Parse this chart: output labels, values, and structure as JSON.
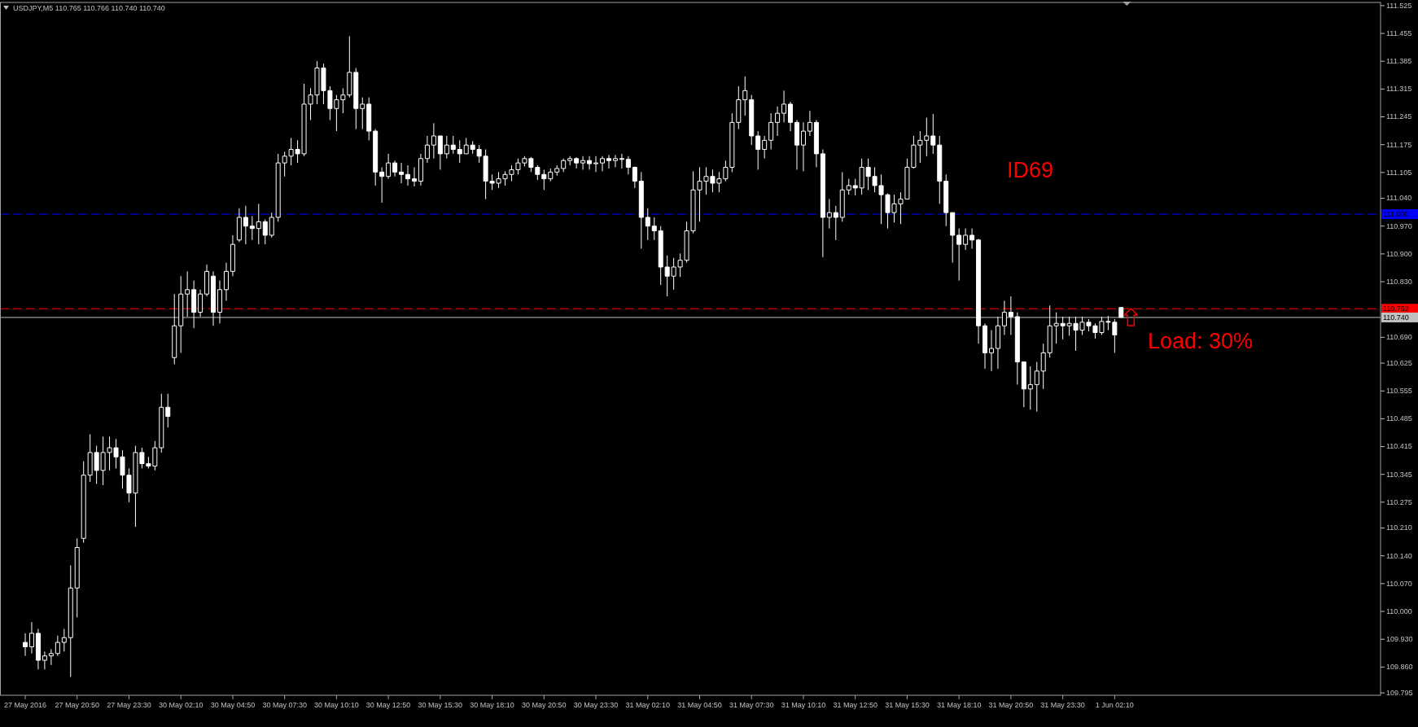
{
  "chart_data": {
    "type": "candlestick",
    "title": "USDJPY,M5 110.765 110.766 110.740 110.740",
    "categories": [
      "27 May 2016",
      null,
      null,
      null,
      null,
      null,
      null,
      null,
      "27 May 20:50",
      null,
      null,
      null,
      null,
      null,
      null,
      null,
      "27 May 23:30",
      null,
      null,
      null,
      null,
      null,
      null,
      null,
      "30 May 02:10",
      null,
      null,
      null,
      null,
      null,
      null,
      null,
      "30 May 04:50",
      null,
      null,
      null,
      null,
      null,
      null,
      null,
      "30 May 07:30",
      null,
      null,
      null,
      null,
      null,
      null,
      null,
      "30 May 10:10",
      null,
      null,
      null,
      null,
      null,
      null,
      null,
      "30 May 12:50",
      null,
      null,
      null,
      null,
      null,
      null,
      null,
      "30 May 15:30",
      null,
      null,
      null,
      null,
      null,
      null,
      null,
      "30 May 18:10",
      null,
      null,
      null,
      null,
      null,
      null,
      null,
      "30 May 20:50",
      null,
      null,
      null,
      null,
      null,
      null,
      null,
      "30 May 23:30",
      null,
      null,
      null,
      null,
      null,
      null,
      null,
      "31 May 02:10",
      null,
      null,
      null,
      null,
      null,
      null,
      null,
      "31 May 04:50",
      null,
      null,
      null,
      null,
      null,
      null,
      null,
      "31 May 07:30",
      null,
      null,
      null,
      null,
      null,
      null,
      null,
      "31 May 10:10",
      null,
      null,
      null,
      null,
      null,
      null,
      null,
      "31 May 12:50",
      null,
      null,
      null,
      null,
      null,
      null,
      null,
      "31 May 15:30",
      null,
      null,
      null,
      null,
      null,
      null,
      null,
      "31 May 18:10",
      null,
      null,
      null,
      null,
      null,
      null,
      null,
      "31 May 20:50",
      null,
      null,
      null,
      null,
      null,
      null,
      null,
      "31 May 23:30",
      null,
      null,
      null,
      null,
      null,
      null,
      null,
      "1 Jun 02:10",
      null,
      null,
      null,
      null,
      null,
      null,
      null,
      null,
      null,
      null,
      null,
      null,
      null,
      null,
      null,
      null,
      null,
      null,
      null,
      null,
      null,
      null,
      null,
      null,
      null,
      null,
      null,
      null,
      null,
      null,
      null,
      null,
      null,
      null,
      null,
      null,
      null,
      null,
      null,
      null
    ],
    "ohlc": [
      [
        109.922,
        109.945,
        109.888,
        109.911
      ],
      [
        109.911,
        109.973,
        109.894,
        109.945
      ],
      [
        109.945,
        109.956,
        109.854,
        109.877
      ],
      [
        109.877,
        109.899,
        109.854,
        109.888
      ],
      [
        109.888,
        109.905,
        109.865,
        109.894
      ],
      [
        109.894,
        109.939,
        109.888,
        109.922
      ],
      [
        109.922,
        109.956,
        109.899,
        109.934
      ],
      [
        109.934,
        110.116,
        109.835,
        110.059
      ],
      [
        110.059,
        110.184,
        109.985,
        110.161
      ],
      [
        110.184,
        110.378,
        110.173,
        110.343
      ],
      [
        110.343,
        110.446,
        110.326,
        110.4
      ],
      [
        110.4,
        110.417,
        110.321,
        110.355
      ],
      [
        110.355,
        110.44,
        110.318,
        110.4
      ],
      [
        110.4,
        110.44,
        110.355,
        110.412
      ],
      [
        110.412,
        110.434,
        110.36,
        110.389
      ],
      [
        110.389,
        110.406,
        110.309,
        110.343
      ],
      [
        110.343,
        110.36,
        110.275,
        110.298
      ],
      [
        110.298,
        110.417,
        110.213,
        110.4
      ],
      [
        110.4,
        110.412,
        110.36,
        110.372
      ],
      [
        110.372,
        110.389,
        110.36,
        110.366
      ],
      [
        110.366,
        110.429,
        110.355,
        110.412
      ],
      [
        110.412,
        110.548,
        110.4,
        110.514
      ],
      [
        110.514,
        110.548,
        110.463,
        110.491
      ],
      [
        110.639,
        110.799,
        110.622,
        110.719
      ],
      [
        110.719,
        110.844,
        110.651,
        110.799
      ],
      [
        110.799,
        110.856,
        110.742,
        110.81
      ],
      [
        110.81,
        110.833,
        110.713,
        110.753
      ],
      [
        110.753,
        110.81,
        110.742,
        110.799
      ],
      [
        110.799,
        110.873,
        110.793,
        110.856
      ],
      [
        110.844,
        110.856,
        110.719,
        110.753
      ],
      [
        110.753,
        110.833,
        110.725,
        110.81
      ],
      [
        110.81,
        110.878,
        110.782,
        110.856
      ],
      [
        110.856,
        110.947,
        110.844,
        110.924
      ],
      [
        110.935,
        111.015,
        110.93,
        110.992
      ],
      [
        110.992,
        111.021,
        110.924,
        110.97
      ],
      [
        110.97,
        110.995,
        110.935,
        110.964
      ],
      [
        110.964,
        111.026,
        110.924,
        110.981
      ],
      [
        110.981,
        110.987,
        110.924,
        110.947
      ],
      [
        110.947,
        111.004,
        110.941,
        110.992
      ],
      [
        110.992,
        111.152,
        110.981,
        111.129
      ],
      [
        111.129,
        111.157,
        111.095,
        111.146
      ],
      [
        111.146,
        111.192,
        111.123,
        111.163
      ],
      [
        111.163,
        111.186,
        111.129,
        111.152
      ],
      [
        111.152,
        111.328,
        111.146,
        111.277
      ],
      [
        111.277,
        111.317,
        111.237,
        111.3
      ],
      [
        111.3,
        111.385,
        111.277,
        111.368
      ],
      [
        111.368,
        111.379,
        111.277,
        111.311
      ],
      [
        111.311,
        111.322,
        111.237,
        111.266
      ],
      [
        111.266,
        111.3,
        111.209,
        111.288
      ],
      [
        111.288,
        111.317,
        111.254,
        111.3
      ],
      [
        111.3,
        111.448,
        111.294,
        111.357
      ],
      [
        111.357,
        111.368,
        111.214,
        111.266
      ],
      [
        111.266,
        111.294,
        111.214,
        111.277
      ],
      [
        111.277,
        111.294,
        111.186,
        111.209
      ],
      [
        111.209,
        111.214,
        111.072,
        111.106
      ],
      [
        111.106,
        111.118,
        111.029,
        111.095
      ],
      [
        111.095,
        111.152,
        111.089,
        111.129
      ],
      [
        111.129,
        111.135,
        111.095,
        111.106
      ],
      [
        111.106,
        111.129,
        111.078,
        111.1
      ],
      [
        111.1,
        111.123,
        111.072,
        111.089
      ],
      [
        111.089,
        111.118,
        111.07,
        111.083
      ],
      [
        111.083,
        111.152,
        111.072,
        111.14
      ],
      [
        111.14,
        111.197,
        111.129,
        111.174
      ],
      [
        111.174,
        111.229,
        111.14,
        111.197
      ],
      [
        111.197,
        111.197,
        111.112,
        111.152
      ],
      [
        111.152,
        111.197,
        111.14,
        111.174
      ],
      [
        111.174,
        111.197,
        111.152,
        111.163
      ],
      [
        111.163,
        111.186,
        111.129,
        111.152
      ],
      [
        111.152,
        111.192,
        111.152,
        111.174
      ],
      [
        111.174,
        111.184,
        111.152,
        111.163
      ],
      [
        111.163,
        111.174,
        111.129,
        111.146
      ],
      [
        111.146,
        111.163,
        111.038,
        111.083
      ],
      [
        111.083,
        111.1,
        111.061,
        111.078
      ],
      [
        111.078,
        111.106,
        111.066,
        111.089
      ],
      [
        111.089,
        111.108,
        111.072,
        111.1
      ],
      [
        111.1,
        111.123,
        111.083,
        111.112
      ],
      [
        111.112,
        111.14,
        111.1,
        111.129
      ],
      [
        111.129,
        111.146,
        111.12,
        111.14
      ],
      [
        111.14,
        111.144,
        111.106,
        111.118
      ],
      [
        111.118,
        111.123,
        111.086,
        111.1
      ],
      [
        111.1,
        111.112,
        111.061,
        111.089
      ],
      [
        111.089,
        111.115,
        111.083,
        111.106
      ],
      [
        111.106,
        111.123,
        111.097,
        111.115
      ],
      [
        111.115,
        111.14,
        111.106,
        111.135
      ],
      [
        111.135,
        111.146,
        111.123,
        111.14
      ],
      [
        111.14,
        111.143,
        111.115,
        111.129
      ],
      [
        111.129,
        111.146,
        111.112,
        111.135
      ],
      [
        111.135,
        111.146,
        111.112,
        111.127
      ],
      [
        111.127,
        111.146,
        111.106,
        111.129
      ],
      [
        111.129,
        111.146,
        111.108,
        111.14
      ],
      [
        111.14,
        111.149,
        111.115,
        111.135
      ],
      [
        111.135,
        111.149,
        111.118,
        111.14
      ],
      [
        111.14,
        111.152,
        111.115,
        111.138
      ],
      [
        111.138,
        111.146,
        111.1,
        111.118
      ],
      [
        111.118,
        111.12,
        111.066,
        111.083
      ],
      [
        111.083,
        111.106,
        110.913,
        110.992
      ],
      [
        110.992,
        111.015,
        110.935,
        110.97
      ],
      [
        110.97,
        110.992,
        110.935,
        110.958
      ],
      [
        110.958,
        110.97,
        110.822,
        110.867
      ],
      [
        110.867,
        110.896,
        110.793,
        110.844
      ],
      [
        110.844,
        110.89,
        110.81,
        110.867
      ],
      [
        110.867,
        110.901,
        110.842,
        110.884
      ],
      [
        110.884,
        110.981,
        110.878,
        110.958
      ],
      [
        110.958,
        111.108,
        110.952,
        111.061
      ],
      [
        111.061,
        111.118,
        110.981,
        111.083
      ],
      [
        111.083,
        111.118,
        111.049,
        111.095
      ],
      [
        111.095,
        111.112,
        111.055,
        111.078
      ],
      [
        111.078,
        111.106,
        111.055,
        111.089
      ],
      [
        111.089,
        111.135,
        111.083,
        111.118
      ],
      [
        111.118,
        111.254,
        111.106,
        111.231
      ],
      [
        111.231,
        111.322,
        111.214,
        111.288
      ],
      [
        111.288,
        111.347,
        111.248,
        111.311
      ],
      [
        111.288,
        111.3,
        111.174,
        111.197
      ],
      [
        111.197,
        111.209,
        111.112,
        111.163
      ],
      [
        111.163,
        111.197,
        111.14,
        111.186
      ],
      [
        111.186,
        111.254,
        111.163,
        111.231
      ],
      [
        111.231,
        111.271,
        111.197,
        111.254
      ],
      [
        111.254,
        111.311,
        111.231,
        111.277
      ],
      [
        111.277,
        111.283,
        111.209,
        111.231
      ],
      [
        111.231,
        111.237,
        111.112,
        111.174
      ],
      [
        111.174,
        111.231,
        111.108,
        111.209
      ],
      [
        111.209,
        111.26,
        111.197,
        111.231
      ],
      [
        111.231,
        111.237,
        111.118,
        111.152
      ],
      [
        111.152,
        111.163,
        110.892,
        110.992
      ],
      [
        110.992,
        111.038,
        110.964,
        111.004
      ],
      [
        111.004,
        111.021,
        110.935,
        110.992
      ],
      [
        110.992,
        111.106,
        110.981,
        111.061
      ],
      [
        111.061,
        111.089,
        111.049,
        111.072
      ],
      [
        111.072,
        111.089,
        111.047,
        111.066
      ],
      [
        111.066,
        111.14,
        111.049,
        111.118
      ],
      [
        111.118,
        111.14,
        111.061,
        111.095
      ],
      [
        111.095,
        111.118,
        111.055,
        111.072
      ],
      [
        111.072,
        111.1,
        110.975,
        111.049
      ],
      [
        111.049,
        111.052,
        110.964,
        111.004
      ],
      [
        111.004,
        111.049,
        110.979,
        111.026
      ],
      [
        111.026,
        111.055,
        110.975,
        111.038
      ],
      [
        111.038,
        111.14,
        111.038,
        111.118
      ],
      [
        111.118,
        111.197,
        111.115,
        111.174
      ],
      [
        111.174,
        111.209,
        111.129,
        111.186
      ],
      [
        111.186,
        111.243,
        111.146,
        111.197
      ],
      [
        111.197,
        111.252,
        111.152,
        111.174
      ],
      [
        111.174,
        111.197,
        111.026,
        111.083
      ],
      [
        111.083,
        111.1,
        110.97,
        111.004
      ],
      [
        111.004,
        111.004,
        110.878,
        110.947
      ],
      [
        110.947,
        110.964,
        110.833,
        110.924
      ],
      [
        110.924,
        110.964,
        110.91,
        110.947
      ],
      [
        110.947,
        110.964,
        110.913,
        110.935
      ],
      [
        110.935,
        110.938,
        110.674,
        110.719
      ],
      [
        110.719,
        110.725,
        110.611,
        110.651
      ],
      [
        110.651,
        110.708,
        110.605,
        110.662
      ],
      [
        110.662,
        110.742,
        110.611,
        110.719
      ],
      [
        110.719,
        110.782,
        110.696,
        110.753
      ],
      [
        110.753,
        110.793,
        110.696,
        110.742
      ],
      [
        110.742,
        110.753,
        110.571,
        110.628
      ],
      [
        110.628,
        110.628,
        110.514,
        110.56
      ],
      [
        110.56,
        110.617,
        110.508,
        110.571
      ],
      [
        110.571,
        110.628,
        110.503,
        110.605
      ],
      [
        110.605,
        110.674,
        110.56,
        110.651
      ],
      [
        110.651,
        110.77,
        110.639,
        110.719
      ],
      [
        110.719,
        110.753,
        110.674,
        110.725
      ],
      [
        110.725,
        110.742,
        110.685,
        110.719
      ],
      [
        110.719,
        110.742,
        110.694,
        110.725
      ],
      [
        110.725,
        110.742,
        110.656,
        110.708
      ],
      [
        110.708,
        110.742,
        110.696,
        110.728
      ],
      [
        110.728,
        110.736,
        110.705,
        110.719
      ],
      [
        110.719,
        110.725,
        110.687,
        110.702
      ],
      [
        110.702,
        110.742,
        110.696,
        110.73
      ],
      [
        110.73,
        110.744,
        110.708,
        110.728
      ],
      [
        110.728,
        110.736,
        110.651,
        110.696
      ],
      [
        110.765,
        110.766,
        110.74,
        110.74
      ],
      null,
      null,
      null,
      null,
      null,
      null,
      null,
      null,
      null,
      null,
      null,
      null,
      null,
      null,
      null,
      null,
      null,
      null,
      null,
      null,
      null,
      null,
      null,
      null,
      null,
      null,
      null,
      null,
      null,
      null,
      null,
      null,
      null,
      null,
      null,
      null,
      null,
      null,
      null
    ],
    "color": "#ffffff",
    "ylim": [
      109.789,
      111.533
    ],
    "yticks": [
      {
        "value": 111.525,
        "label": "111.525"
      },
      {
        "value": 111.455,
        "label": "111.455"
      },
      {
        "value": 111.385,
        "label": "111.385"
      },
      {
        "value": 111.315,
        "label": "111.315"
      },
      {
        "value": 111.245,
        "label": "111.245"
      },
      {
        "value": 111.175,
        "label": "111.175"
      },
      {
        "value": 111.105,
        "label": "111.105"
      },
      {
        "value": 111.04,
        "label": "111.040"
      },
      {
        "value": 110.97,
        "label": "110.970"
      },
      {
        "value": 110.9,
        "label": "110.900"
      },
      {
        "value": 110.83,
        "label": "110.830"
      },
      {
        "value": 110.69,
        "label": "110.690"
      },
      {
        "value": 110.625,
        "label": "110.625"
      },
      {
        "value": 110.555,
        "label": "110.555"
      },
      {
        "value": 110.485,
        "label": "110.485"
      },
      {
        "value": 110.415,
        "label": "110.415"
      },
      {
        "value": 110.345,
        "label": "110.345"
      },
      {
        "value": 110.275,
        "label": "110.275"
      },
      {
        "value": 110.21,
        "label": "110.210"
      },
      {
        "value": 110.14,
        "label": "110.140"
      },
      {
        "value": 110.07,
        "label": "110.070"
      },
      {
        "value": 110,
        "label": "110.000"
      },
      {
        "value": 109.93,
        "label": "109.930"
      },
      {
        "value": 109.86,
        "label": "109.860"
      },
      {
        "value": 109.795,
        "label": "109.795"
      }
    ],
    "ref_lines": [
      {
        "axis": "y",
        "value": 111.0,
        "label": "111.000",
        "color": "#0000ff",
        "line_style": "dashed"
      },
      {
        "axis": "y",
        "value": 110.762,
        "label": "110.762",
        "color": "#ff0000",
        "line_style": "dashed"
      },
      {
        "axis": "y",
        "value": 110.74,
        "label": "110.740",
        "color": "#c0c0c0",
        "line_style": "solid"
      }
    ],
    "annotations": [
      "ID69",
      "Load: 30%"
    ]
  }
}
